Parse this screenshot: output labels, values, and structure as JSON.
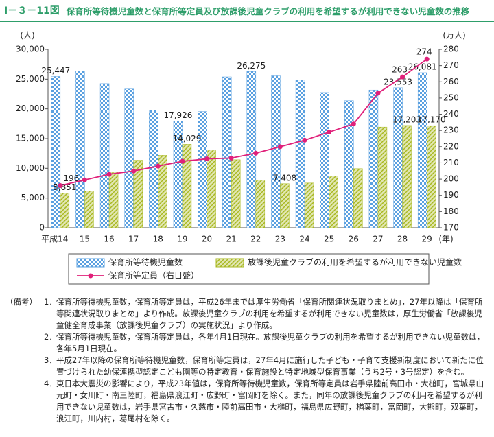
{
  "header": {
    "figure_number": "Ⅰ－３－11図",
    "title": "保育所等待機児童数と保育所等定員及び放課後児童クラブの利用を希望するが利用できない児童数の推移"
  },
  "chart_data": {
    "type": "bar",
    "categories": [
      "平成14",
      "15",
      "16",
      "17",
      "18",
      "19",
      "20",
      "21",
      "22",
      "23",
      "24",
      "25",
      "26",
      "27",
      "28",
      "29"
    ],
    "x_label": "(年)",
    "y_label": "(人)",
    "y2_label": "(万人)",
    "ylim": [
      0,
      30000
    ],
    "yticks": [
      0,
      {
        "value": 5000,
        "label": "5,000"
      },
      {
        "value": 10000,
        "label": "10,000"
      },
      {
        "value": 15000,
        "label": "15,000"
      },
      {
        "value": 20000,
        "label": "20,000"
      },
      {
        "value": 25000,
        "label": "25,000"
      },
      {
        "value": 30000,
        "label": "30,000"
      }
    ],
    "y2lim": [
      170,
      280
    ],
    "y2ticks": [
      170,
      180,
      190,
      200,
      210,
      220,
      230,
      240,
      250,
      260,
      270,
      280
    ],
    "series": [
      {
        "name": "保育所等待機児童数",
        "type": "bar",
        "color": "#5aa0e0",
        "values": [
          25447,
          26383,
          24245,
          23338,
          19794,
          17926,
          19550,
          25384,
          26275,
          25556,
          24825,
          22741,
          21371,
          23167,
          23553,
          26081
        ],
        "value_labels": [
          "25,447",
          null,
          null,
          null,
          null,
          "17,926",
          null,
          null,
          "26,275",
          null,
          null,
          null,
          null,
          null,
          "23,553",
          "26,081"
        ]
      },
      {
        "name": "放課後児童クラブの利用を希望するが利用できない児童数",
        "type": "bar",
        "color": "#a8b820",
        "values": [
          5851,
          6180,
          9400,
          11360,
          12189,
          14029,
          13096,
          11438,
          8021,
          7408,
          7521,
          8689,
          9945,
          16941,
          17203,
          17170
        ],
        "value_labels": [
          "5,851",
          null,
          null,
          null,
          null,
          "14,029",
          null,
          null,
          null,
          "7,408",
          null,
          null,
          null,
          null,
          "17,203",
          "17,170"
        ]
      },
      {
        "name": "保育所等定員（右目盛）",
        "type": "line",
        "axis": "y2",
        "color": "#e0207a",
        "values": [
          196,
          199.5,
          203,
          205,
          208,
          211,
          212.5,
          213,
          216,
          220,
          224,
          229,
          234,
          253,
          263,
          274
        ],
        "value_labels": [
          "196",
          null,
          null,
          null,
          null,
          null,
          null,
          null,
          null,
          null,
          null,
          null,
          null,
          null,
          "263",
          "274"
        ]
      }
    ]
  },
  "notes": {
    "label": "（備考）",
    "items": [
      {
        "number": "1．",
        "text": "保育所等待機児童数，保育所等定員は，平成26年までは厚生労働省「保育所関連状況取りまとめ」，27年以降は「保育所等関連状況取りまとめ」より作成。放課後児童クラブの利用を希望するが利用できない児童数は，厚生労働省「放課後児童健全育成事業（放課後児童クラブ）の実施状況」より作成。"
      },
      {
        "number": "2．",
        "text": "保育所等待機児童数，保育所等定員は，各年4月1日現在。放課後児童クラブの利用を希望するが利用できない児童数は，各年5月1日現在。"
      },
      {
        "number": "3．",
        "text": "平成27年以降の保育所等待機児童数，保育所等定員は，27年4月に施行した子ども・子育て支援新制度において新たに位置づけられた幼保連携型認定こども園等の特定教育・保育施設と特定地域型保育事業（うち2号・3号認定）を含む。"
      },
      {
        "number": "4．",
        "text": "東日本大震災の影響により，平成23年値は，保育所等待機児童数，保育所等定員は岩手県陸前高田市・大槌町，宮城県山元町・女川町・南三陸町，福島県浪江町・広野町・富岡町を除く。また，同年の放課後児童クラブの利用を希望するが利用できない児童数は，岩手県宮古市・久慈市・陸前高田市・大槌町，福島県広野町，楢葉町，富岡町，大熊町，双葉町，浪江町，川内村，葛尾村を除く。"
      }
    ]
  }
}
